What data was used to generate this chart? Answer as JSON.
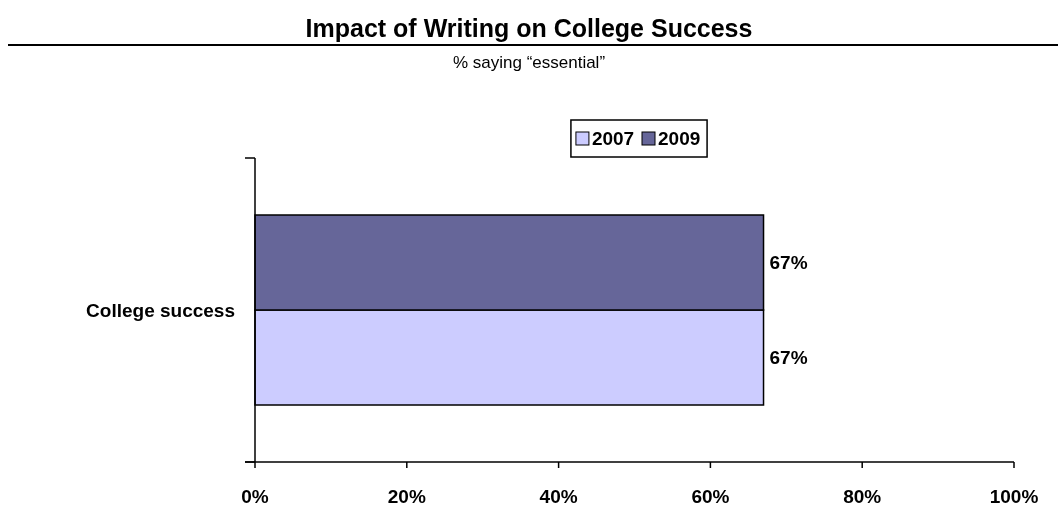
{
  "chart_data": {
    "type": "bar",
    "orientation": "horizontal",
    "title": "Impact of Writing on College Success",
    "subtitle": "% saying “essential”",
    "categories": [
      "College success"
    ],
    "series": [
      {
        "name": "2007",
        "color": "#ccccff",
        "values": [
          67
        ],
        "value_labels": [
          "67%"
        ]
      },
      {
        "name": "2009",
        "color": "#666699",
        "values": [
          67
        ],
        "value_labels": [
          "67%"
        ]
      }
    ],
    "xlim": [
      0,
      100
    ],
    "xticks": [
      {
        "value": 0,
        "label": "0%"
      },
      {
        "value": 20,
        "label": "20%"
      },
      {
        "value": 40,
        "label": "40%"
      },
      {
        "value": 60,
        "label": "60%"
      },
      {
        "value": 80,
        "label": "80%"
      },
      {
        "value": 100,
        "label": "100%"
      }
    ],
    "legend": "top"
  }
}
